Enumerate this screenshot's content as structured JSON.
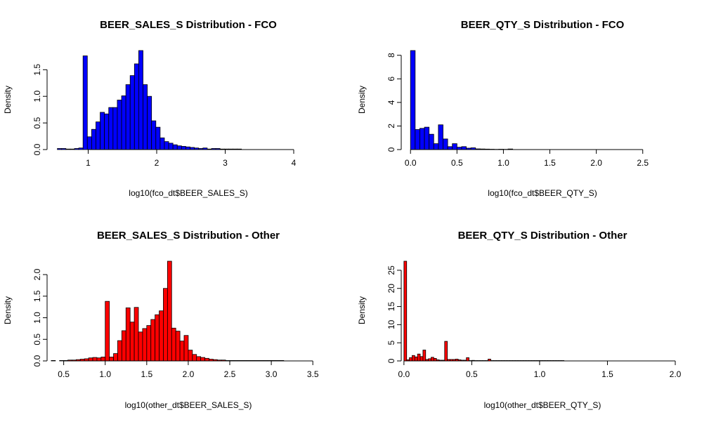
{
  "chart_data": [
    {
      "type": "bar",
      "title": "BEER_SALES_S Distribution - FCO",
      "xlabel": "log10(fco_dt$BEER_SALES_S)",
      "ylabel": "Density",
      "fill": "#0000ff",
      "xlim": [
        0.4,
        4.4
      ],
      "ylim": [
        0,
        1.86
      ],
      "xticks": [
        1,
        2,
        3,
        4
      ],
      "yticks": [
        0.0,
        0.5,
        1.0,
        1.5
      ],
      "xtick_labels": [
        "1",
        "2",
        "3",
        "4"
      ],
      "ytick_labels": [
        "0.0",
        "0.5",
        "1.0",
        "1.5"
      ],
      "bin_start": 0.55,
      "bin_width": 0.0625,
      "values": [
        0.02,
        0.02,
        0.01,
        0.01,
        0.02,
        0.03,
        1.76,
        0.24,
        0.38,
        0.52,
        0.7,
        0.67,
        0.79,
        0.79,
        0.93,
        1.01,
        1.22,
        1.39,
        1.61,
        1.86,
        1.22,
        1.0,
        0.54,
        0.42,
        0.22,
        0.15,
        0.12,
        0.09,
        0.07,
        0.06,
        0.05,
        0.04,
        0.03,
        0.02,
        0.03,
        0.01,
        0.02,
        0.02,
        0.01,
        0.01,
        0.01,
        0.01,
        0.01
      ]
    },
    {
      "type": "bar",
      "title": "BEER_QTY_S Distribution - FCO",
      "xlabel": "log10(fco_dt$BEER_QTY_S)",
      "ylabel": "Density",
      "fill": "#0000ff",
      "xlim": [
        -0.1,
        2.85
      ],
      "ylim": [
        0,
        8.4
      ],
      "xticks": [
        0.0,
        0.5,
        1.0,
        1.5,
        2.0,
        2.5
      ],
      "yticks": [
        0,
        2,
        4,
        6,
        8
      ],
      "xtick_labels": [
        "0.0",
        "0.5",
        "1.0",
        "1.5",
        "2.0",
        "2.5"
      ],
      "ytick_labels": [
        "0",
        "2",
        "4",
        "6",
        "8"
      ],
      "bin_start": 0.0,
      "bin_width": 0.05,
      "values": [
        8.4,
        1.7,
        1.8,
        1.9,
        1.3,
        0.5,
        2.1,
        0.9,
        0.25,
        0.5,
        0.2,
        0.25,
        0.12,
        0.15,
        0.06,
        0.05,
        0.04,
        0.03,
        0.02,
        0.03,
        0.02,
        0.05
      ]
    },
    {
      "type": "bar",
      "title": "BEER_SALES_S Distribution - Other",
      "xlabel": "log10(other_dt$BEER_SALES_S)",
      "ylabel": "Density",
      "fill": "#ff0000",
      "xlim": [
        0.3,
        3.6
      ],
      "ylim": [
        0,
        2.31
      ],
      "xticks": [
        0.5,
        1.0,
        1.5,
        2.0,
        2.5,
        3.0,
        3.5
      ],
      "yticks": [
        0.0,
        0.5,
        1.0,
        1.5,
        2.0
      ],
      "xtick_labels": [
        "0.5",
        "1.0",
        "1.5",
        "2.0",
        "2.5",
        "3.0",
        "3.5"
      ],
      "ytick_labels": [
        "0.0",
        "0.5",
        "1.0",
        "1.5",
        "2.0"
      ],
      "bin_start": 0.35,
      "bin_width": 0.05,
      "values": [
        0.01,
        0.0,
        0.01,
        0.01,
        0.02,
        0.02,
        0.03,
        0.04,
        0.05,
        0.07,
        0.08,
        0.07,
        0.09,
        1.38,
        0.09,
        0.17,
        0.47,
        0.7,
        1.23,
        0.9,
        1.24,
        0.67,
        0.75,
        0.82,
        0.96,
        1.07,
        1.16,
        1.68,
        2.31,
        0.76,
        0.69,
        0.46,
        0.59,
        0.25,
        0.15,
        0.1,
        0.08,
        0.06,
        0.04,
        0.03,
        0.02,
        0.02,
        0.01,
        0.01,
        0.01,
        0.01,
        0.01,
        0.01,
        0.01,
        0.01,
        0.01,
        0.01,
        0.01,
        0.01,
        0.01,
        0.01
      ]
    },
    {
      "type": "bar",
      "title": "BEER_QTY_S Distribution - Other",
      "xlabel": "log10(other_dt$BEER_QTY_S)",
      "ylabel": "Density",
      "fill": "#ff0000",
      "xlim": [
        -0.02,
        2.0
      ],
      "ylim": [
        0,
        27.5
      ],
      "xticks": [
        0.0,
        0.5,
        1.0,
        1.5,
        2.0
      ],
      "yticks": [
        0,
        5,
        10,
        15,
        20,
        25
      ],
      "xtick_labels": [
        "0.0",
        "0.5",
        "1.0",
        "1.5",
        "2.0"
      ],
      "ytick_labels": [
        "0",
        "5",
        "10",
        "15",
        "20",
        "25"
      ],
      "bin_start": 0.0,
      "bin_width": 0.02,
      "values": [
        27.5,
        0.3,
        0.9,
        1.5,
        1.1,
        1.9,
        1.2,
        3.0,
        0.4,
        0.6,
        1.0,
        0.7,
        0.3,
        0.2,
        0.2,
        5.4,
        0.4,
        0.4,
        0.4,
        0.5,
        0.3,
        0.2,
        0.2,
        0.9,
        0.1,
        0.15,
        0.1,
        0.1,
        0.1,
        0.1,
        0.1,
        0.5,
        0.1,
        0.1,
        0.1,
        0.1,
        0.1,
        0.1,
        0.1,
        0.1,
        0.1,
        0.1,
        0.1,
        0.1,
        0.1,
        0.1,
        0.1,
        0.1,
        0.1,
        0.1,
        0.1,
        0.1,
        0.1,
        0.1,
        0.1,
        0.1,
        0.1,
        0.1,
        0.1
      ]
    }
  ]
}
